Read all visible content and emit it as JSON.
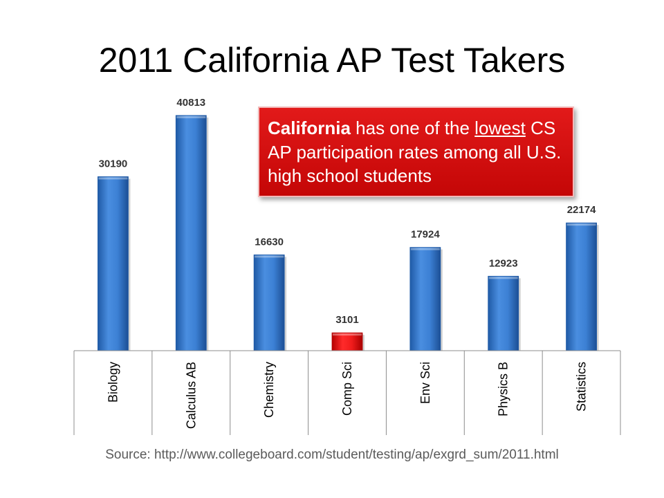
{
  "chart_data": {
    "type": "bar",
    "title": "2011 California AP Test Takers",
    "categories": [
      "Biology",
      "Calculus AB",
      "Chemistry",
      "Comp Sci",
      "Env Sci",
      "Physics B",
      "Statistics"
    ],
    "values": [
      30190,
      40813,
      16630,
      3101,
      17924,
      12923,
      22174
    ],
    "highlight_category": "Comp Sci",
    "data_labels": true,
    "ylim": [
      0,
      45000
    ],
    "grid": false,
    "xlabel": "",
    "ylabel": ""
  },
  "colors": {
    "bar": "#3a7dd1",
    "bar_dark": "#1e5aa8",
    "highlight": "#e81515",
    "highlight_dark": "#b30000",
    "axis": "#8c8c8c",
    "callout_bg": "#d40e0e"
  },
  "callout": {
    "bold": "California",
    "text_1": " has one of the ",
    "underlined": "lowest",
    "text_2": " CS AP participation rates among all U.S. high school students"
  },
  "source": "Source: http://www.collegeboard.com/student/testing/ap/exgrd_sum/2011.html"
}
